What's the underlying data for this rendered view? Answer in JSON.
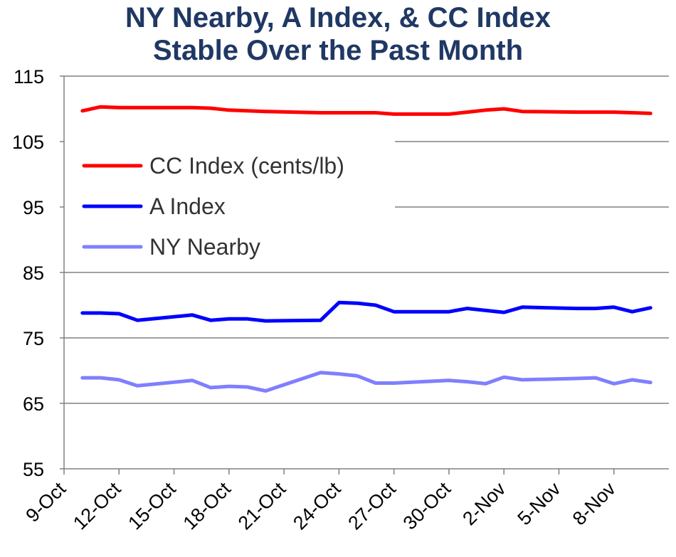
{
  "chart_data": {
    "type": "line",
    "title": [
      "NY Nearby, A Index, & CC Index",
      "Stable Over the Past Month"
    ],
    "xlabel": "",
    "ylabel": "",
    "ylim": [
      55,
      115
    ],
    "y_ticks": [
      55,
      65,
      75,
      85,
      95,
      105,
      115
    ],
    "x_tick_labels": [
      "9-Oct",
      "12-Oct",
      "15-Oct",
      "18-Oct",
      "21-Oct",
      "24-Oct",
      "27-Oct",
      "30-Oct",
      "2-Nov",
      "5-Nov",
      "8-Nov"
    ],
    "x_start": "9-Oct",
    "x_end": "11-Nov",
    "grid": {
      "horizontal": true,
      "vertical": false
    },
    "legend_position": "upper-left",
    "series": [
      {
        "name": "CC Index (cents/lb)",
        "color": "#ff0000",
        "points": [
          [
            "10-Oct",
            109.7
          ],
          [
            "11-Oct",
            110.3
          ],
          [
            "12-Oct",
            110.2
          ],
          [
            "13-Oct",
            110.2
          ],
          [
            "16-Oct",
            110.2
          ],
          [
            "17-Oct",
            110.1
          ],
          [
            "18-Oct",
            109.8
          ],
          [
            "19-Oct",
            109.7
          ],
          [
            "20-Oct",
            109.6
          ],
          [
            "23-Oct",
            109.4
          ],
          [
            "24-Oct",
            109.4
          ],
          [
            "25-Oct",
            109.4
          ],
          [
            "26-Oct",
            109.4
          ],
          [
            "27-Oct",
            109.2
          ],
          [
            "30-Oct",
            109.2
          ],
          [
            "31-Oct",
            109.5
          ],
          [
            "1-Nov",
            109.8
          ],
          [
            "2-Nov",
            110.0
          ],
          [
            "3-Nov",
            109.6
          ],
          [
            "6-Nov",
            109.5
          ],
          [
            "7-Nov",
            109.5
          ],
          [
            "8-Nov",
            109.5
          ],
          [
            "9-Nov",
            109.4
          ],
          [
            "10-Nov",
            109.3
          ]
        ]
      },
      {
        "name": "A Index",
        "color": "#0000ff",
        "points": [
          [
            "10-Oct",
            78.8
          ],
          [
            "11-Oct",
            78.8
          ],
          [
            "12-Oct",
            78.7
          ],
          [
            "13-Oct",
            77.7
          ],
          [
            "16-Oct",
            78.5
          ],
          [
            "17-Oct",
            77.7
          ],
          [
            "18-Oct",
            77.9
          ],
          [
            "19-Oct",
            77.9
          ],
          [
            "20-Oct",
            77.6
          ],
          [
            "23-Oct",
            77.7
          ],
          [
            "24-Oct",
            80.4
          ],
          [
            "25-Oct",
            80.3
          ],
          [
            "26-Oct",
            80.0
          ],
          [
            "27-Oct",
            79.0
          ],
          [
            "30-Oct",
            79.0
          ],
          [
            "31-Oct",
            79.5
          ],
          [
            "1-Nov",
            79.2
          ],
          [
            "2-Nov",
            78.9
          ],
          [
            "3-Nov",
            79.7
          ],
          [
            "6-Nov",
            79.5
          ],
          [
            "7-Nov",
            79.5
          ],
          [
            "8-Nov",
            79.7
          ],
          [
            "9-Nov",
            79.0
          ],
          [
            "10-Nov",
            79.6
          ]
        ]
      },
      {
        "name": "NY Nearby",
        "color": "#7f7fff",
        "points": [
          [
            "10-Oct",
            68.9
          ],
          [
            "11-Oct",
            68.9
          ],
          [
            "12-Oct",
            68.6
          ],
          [
            "13-Oct",
            67.7
          ],
          [
            "16-Oct",
            68.5
          ],
          [
            "17-Oct",
            67.4
          ],
          [
            "18-Oct",
            67.6
          ],
          [
            "19-Oct",
            67.5
          ],
          [
            "20-Oct",
            66.9
          ],
          [
            "23-Oct",
            69.7
          ],
          [
            "24-Oct",
            69.5
          ],
          [
            "25-Oct",
            69.2
          ],
          [
            "26-Oct",
            68.1
          ],
          [
            "27-Oct",
            68.1
          ],
          [
            "30-Oct",
            68.5
          ],
          [
            "31-Oct",
            68.3
          ],
          [
            "1-Nov",
            68.0
          ],
          [
            "2-Nov",
            69.0
          ],
          [
            "3-Nov",
            68.6
          ],
          [
            "6-Nov",
            68.8
          ],
          [
            "7-Nov",
            68.9
          ],
          [
            "8-Nov",
            68.0
          ],
          [
            "9-Nov",
            68.6
          ],
          [
            "10-Nov",
            68.2
          ]
        ]
      }
    ]
  }
}
